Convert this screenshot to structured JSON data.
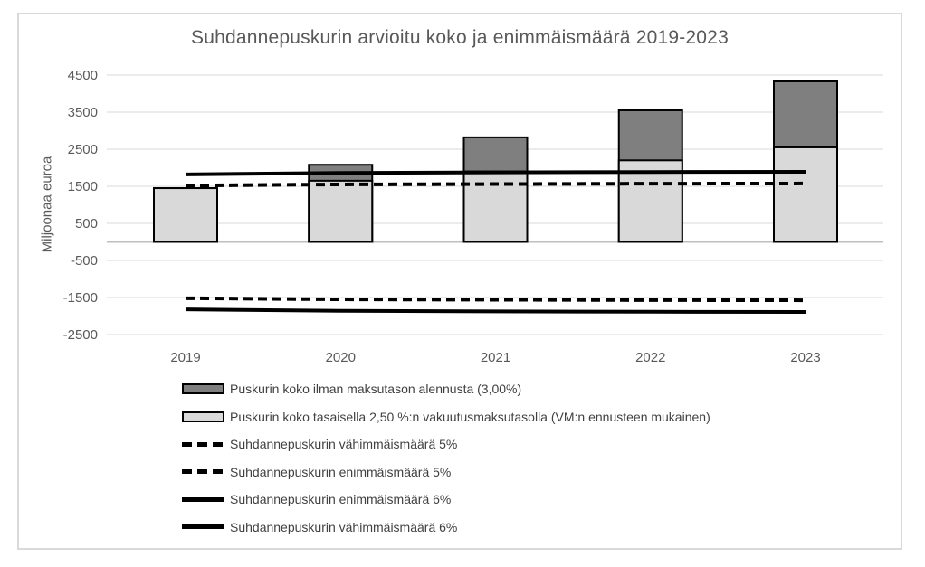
{
  "title": "Suhdannepuskurin arvioitu koko ja enimmäismäärä 2019-2023",
  "colors": {
    "bar_dark": "#7f7f7f",
    "bar_light": "#d9d9d9",
    "line": "#000000",
    "grid": "#d9d9d9",
    "axis": "#bfbfbf",
    "tick_text": "#595959",
    "frame_border": "#d9d9d9"
  },
  "chart_data": {
    "type": "bar",
    "title": "Suhdannepuskurin arvioitu koko ja enimmäismäärä 2019-2023",
    "xlabel": "",
    "ylabel": "Miljoonaa euroa",
    "categories": [
      "2019",
      "2020",
      "2021",
      "2022",
      "2023"
    ],
    "y_ticks": [
      4500,
      3500,
      2500,
      1500,
      500,
      -500,
      -1500,
      -2500
    ],
    "ylim": [
      -2600,
      4700
    ],
    "grid": true,
    "legend_position": "bottom-left",
    "series": [
      {
        "name": "Puskurin koko ilman maksutason alennusta (3,00%)",
        "type": "bar",
        "color": "#7f7f7f",
        "values": [
          1450,
          2080,
          2820,
          3550,
          4330
        ]
      },
      {
        "name": "Puskurin koko tasaisella 2,50 %:n vakuutusmaksutasolla (VM:n ennusteen mukainen)",
        "type": "bar",
        "color": "#d9d9d9",
        "values": [
          1450,
          1650,
          1900,
          2200,
          2550
        ]
      },
      {
        "name": "Suhdannepuskurin vähimmäismäärä 5%",
        "type": "line",
        "dash": "dashed",
        "color": "#000000",
        "values": [
          -1520,
          -1550,
          -1560,
          -1570,
          -1575
        ]
      },
      {
        "name": "Suhdannepuskurin enimmäismäärä 5%",
        "type": "line",
        "dash": "dashed",
        "color": "#000000",
        "values": [
          1520,
          1550,
          1560,
          1570,
          1575
        ]
      },
      {
        "name": "Suhdannepuskurin enimmäismäärä 6%",
        "type": "line",
        "dash": "solid",
        "color": "#000000",
        "values": [
          1820,
          1860,
          1875,
          1885,
          1890
        ]
      },
      {
        "name": "Suhdannepuskurin vähimmäismäärä 6%",
        "type": "line",
        "dash": "solid",
        "color": "#000000",
        "values": [
          -1820,
          -1860,
          -1875,
          -1885,
          -1890
        ]
      }
    ]
  }
}
